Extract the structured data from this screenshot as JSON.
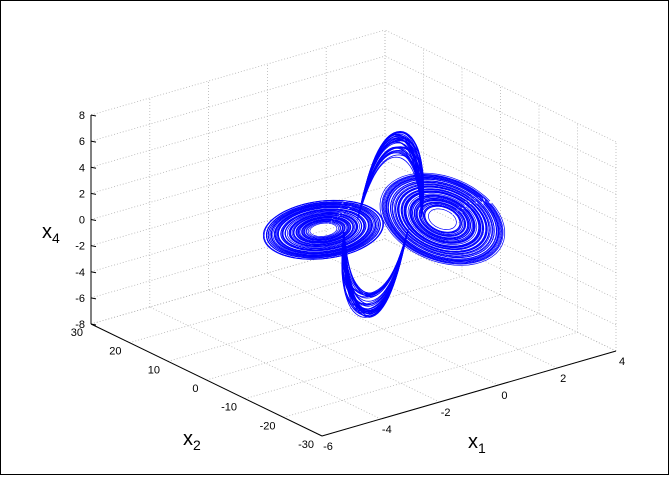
{
  "chart_data": {
    "type": "line",
    "projection": "3d",
    "title": "",
    "grid": true,
    "series_color": "#0000ff",
    "axes": {
      "x1": {
        "label_main": "x",
        "label_sub": "1",
        "range": [
          -6,
          4
        ],
        "ticks": [
          -6,
          -4,
          -2,
          0,
          2,
          4
        ],
        "tick_labels": [
          "-6",
          "-4",
          "-2",
          "0",
          "2",
          "4"
        ]
      },
      "x2": {
        "label_main": "x",
        "label_sub": "2",
        "range": [
          -30,
          30
        ],
        "ticks": [
          -30,
          -20,
          -10,
          0,
          10,
          20,
          30
        ],
        "tick_labels": [
          "-30",
          "-20",
          "-10",
          "0",
          "10",
          "20",
          "30"
        ]
      },
      "x4": {
        "label_main": "x",
        "label_sub": "4",
        "range": [
          -8,
          8
        ],
        "ticks": [
          -8,
          -6,
          -4,
          -2,
          0,
          2,
          4,
          6,
          8
        ],
        "tick_labels": [
          "-8",
          "-6",
          "-4",
          "-2",
          "0",
          "2",
          "4",
          "6",
          "8"
        ]
      }
    },
    "series": [
      {
        "shape": "double-scroll chaotic attractor",
        "lobes": [
          {
            "center": [
              -1.5,
              4,
              0
            ],
            "x1_halfwidth": 2.2,
            "x2_halfwidth": 13,
            "x4_halfwidth": 1.6
          },
          {
            "center": [
              1.5,
              -4,
              0
            ],
            "x1_halfwidth": 2.2,
            "x2_halfwidth": 13,
            "x4_halfwidth": 1.6
          }
        ],
        "peak_x4": 7,
        "trough_x4": -7
      }
    ]
  }
}
